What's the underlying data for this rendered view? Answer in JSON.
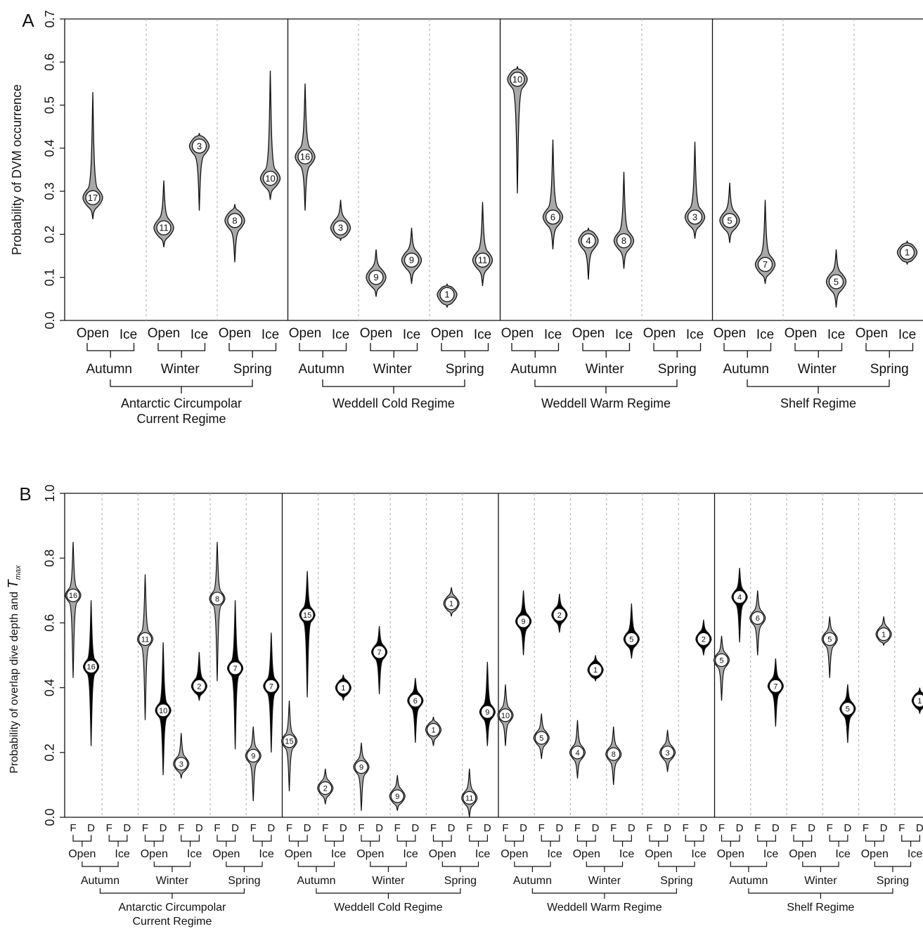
{
  "chart_data": [
    {
      "type": "violin",
      "panel_label": "A",
      "ylabel": "Probability of DVM occurrence",
      "ylim": [
        0,
        0.7
      ],
      "yticks": [
        "0.0",
        "0.1",
        "0.2",
        "0.3",
        "0.4",
        "0.5",
        "0.6",
        "0.7"
      ],
      "regimes": [
        "Antarctic Circumpolar Current Regime",
        "Weddell Cold Regime",
        "Weddell Warm Regime",
        "Shelf Regime"
      ],
      "regime_label_lines": [
        [
          "Antarctic Circumpolar",
          "Current Regime"
        ],
        [
          "Weddell Cold Regime"
        ],
        [
          "Weddell Warm Regime"
        ],
        [
          "Shelf Regime"
        ]
      ],
      "seasons": [
        "Autumn",
        "Winter",
        "Spring"
      ],
      "habitats": [
        "Open",
        "Ice"
      ],
      "violins": [
        {
          "regime": 0,
          "season": 0,
          "habitat": 0,
          "fill": "gray",
          "n": "17",
          "median": 0.285,
          "min": 0.235,
          "max": 0.53
        },
        {
          "regime": 0,
          "season": 1,
          "habitat": 0,
          "fill": "gray",
          "n": "11",
          "median": 0.215,
          "min": 0.17,
          "max": 0.325
        },
        {
          "regime": 0,
          "season": 1,
          "habitat": 1,
          "fill": "gray",
          "n": "3",
          "median": 0.405,
          "min": 0.255,
          "max": 0.435
        },
        {
          "regime": 0,
          "season": 2,
          "habitat": 0,
          "fill": "gray",
          "n": "8",
          "median": 0.232,
          "min": 0.135,
          "max": 0.27
        },
        {
          "regime": 0,
          "season": 2,
          "habitat": 1,
          "fill": "gray",
          "n": "10",
          "median": 0.33,
          "min": 0.28,
          "max": 0.58
        },
        {
          "regime": 1,
          "season": 0,
          "habitat": 0,
          "fill": "gray",
          "n": "16",
          "median": 0.38,
          "min": 0.255,
          "max": 0.55
        },
        {
          "regime": 1,
          "season": 0,
          "habitat": 1,
          "fill": "gray",
          "n": "3",
          "median": 0.215,
          "min": 0.185,
          "max": 0.28
        },
        {
          "regime": 1,
          "season": 1,
          "habitat": 0,
          "fill": "gray",
          "n": "9",
          "median": 0.1,
          "min": 0.055,
          "max": 0.165
        },
        {
          "regime": 1,
          "season": 1,
          "habitat": 1,
          "fill": "gray",
          "n": "9",
          "median": 0.14,
          "min": 0.085,
          "max": 0.215
        },
        {
          "regime": 1,
          "season": 2,
          "habitat": 0,
          "fill": "gray",
          "n": "1",
          "median": 0.06,
          "min": 0.03,
          "max": 0.085
        },
        {
          "regime": 1,
          "season": 2,
          "habitat": 1,
          "fill": "gray",
          "n": "11",
          "median": 0.14,
          "min": 0.08,
          "max": 0.275
        },
        {
          "regime": 2,
          "season": 0,
          "habitat": 0,
          "fill": "gray",
          "n": "10",
          "median": 0.56,
          "min": 0.295,
          "max": 0.59
        },
        {
          "regime": 2,
          "season": 0,
          "habitat": 1,
          "fill": "gray",
          "n": "6",
          "median": 0.24,
          "min": 0.165,
          "max": 0.42
        },
        {
          "regime": 2,
          "season": 1,
          "habitat": 0,
          "fill": "gray",
          "n": "4",
          "median": 0.185,
          "min": 0.095,
          "max": 0.215
        },
        {
          "regime": 2,
          "season": 1,
          "habitat": 1,
          "fill": "gray",
          "n": "8",
          "median": 0.185,
          "min": 0.12,
          "max": 0.345
        },
        {
          "regime": 2,
          "season": 2,
          "habitat": 1,
          "fill": "gray",
          "n": "3",
          "median": 0.24,
          "min": 0.19,
          "max": 0.415
        },
        {
          "regime": 3,
          "season": 0,
          "habitat": 0,
          "fill": "gray",
          "n": "5",
          "median": 0.232,
          "min": 0.18,
          "max": 0.32
        },
        {
          "regime": 3,
          "season": 0,
          "habitat": 1,
          "fill": "gray",
          "n": "7",
          "median": 0.13,
          "min": 0.085,
          "max": 0.28
        },
        {
          "regime": 3,
          "season": 1,
          "habitat": 1,
          "fill": "gray",
          "n": "5",
          "median": 0.09,
          "min": 0.03,
          "max": 0.165
        },
        {
          "regime": 3,
          "season": 2,
          "habitat": 1,
          "fill": "gray",
          "n": "1",
          "median": 0.158,
          "min": 0.13,
          "max": 0.185
        }
      ]
    },
    {
      "type": "violin",
      "panel_label": "B",
      "ylabel": "Probability of overlap dive depth and",
      "ylabel_italic": "T",
      "ylabel_sub": "max",
      "ylim": [
        0,
        1.0
      ],
      "yticks": [
        "0.0",
        "0.2",
        "0.4",
        "0.6",
        "0.8",
        "1.0"
      ],
      "regimes": [
        "Antarctic Circumpolar Current Regime",
        "Weddell Cold Regime",
        "Weddell Warm Regime",
        "Shelf Regime"
      ],
      "regime_label_lines": [
        [
          "Antarctic Circumpolar",
          "Current Regime"
        ],
        [
          "Weddell Cold Regime"
        ],
        [
          "Weddell Warm Regime"
        ],
        [
          "Shelf Regime"
        ]
      ],
      "seasons": [
        "Autumn",
        "Winter",
        "Spring"
      ],
      "habitats": [
        "Open",
        "Ice"
      ],
      "subgroups": [
        "F",
        "D"
      ],
      "violins": [
        {
          "regime": 0,
          "season": 0,
          "habitat": 0,
          "sub": 0,
          "fill": "gray",
          "n": "16",
          "median": 0.685,
          "min": 0.43,
          "max": 0.85
        },
        {
          "regime": 0,
          "season": 0,
          "habitat": 0,
          "sub": 1,
          "fill": "black",
          "n": "16",
          "median": 0.465,
          "min": 0.22,
          "max": 0.67
        },
        {
          "regime": 0,
          "season": 1,
          "habitat": 0,
          "sub": 0,
          "fill": "gray",
          "n": "11",
          "median": 0.55,
          "min": 0.3,
          "max": 0.75
        },
        {
          "regime": 0,
          "season": 1,
          "habitat": 0,
          "sub": 1,
          "fill": "black",
          "n": "10",
          "median": 0.33,
          "min": 0.13,
          "max": 0.54
        },
        {
          "regime": 0,
          "season": 1,
          "habitat": 1,
          "sub": 0,
          "fill": "gray",
          "n": "3",
          "median": 0.165,
          "min": 0.12,
          "max": 0.26
        },
        {
          "regime": 0,
          "season": 1,
          "habitat": 1,
          "sub": 1,
          "fill": "black",
          "n": "2",
          "median": 0.405,
          "min": 0.36,
          "max": 0.51
        },
        {
          "regime": 0,
          "season": 2,
          "habitat": 0,
          "sub": 0,
          "fill": "gray",
          "n": "8",
          "median": 0.675,
          "min": 0.42,
          "max": 0.85
        },
        {
          "regime": 0,
          "season": 2,
          "habitat": 0,
          "sub": 1,
          "fill": "black",
          "n": "7",
          "median": 0.46,
          "min": 0.21,
          "max": 0.67
        },
        {
          "regime": 0,
          "season": 2,
          "habitat": 1,
          "sub": 0,
          "fill": "gray",
          "n": "9",
          "median": 0.19,
          "min": 0.05,
          "max": 0.28
        },
        {
          "regime": 0,
          "season": 2,
          "habitat": 1,
          "sub": 1,
          "fill": "black",
          "n": "7",
          "median": 0.405,
          "min": 0.2,
          "max": 0.57
        },
        {
          "regime": 1,
          "season": 0,
          "habitat": 0,
          "sub": 0,
          "fill": "gray",
          "n": "15",
          "median": 0.235,
          "min": 0.08,
          "max": 0.36
        },
        {
          "regime": 1,
          "season": 0,
          "habitat": 0,
          "sub": 1,
          "fill": "black",
          "n": "15",
          "median": 0.625,
          "min": 0.37,
          "max": 0.76
        },
        {
          "regime": 1,
          "season": 0,
          "habitat": 1,
          "sub": 0,
          "fill": "gray",
          "n": "2",
          "median": 0.09,
          "min": 0.04,
          "max": 0.15
        },
        {
          "regime": 1,
          "season": 0,
          "habitat": 1,
          "sub": 1,
          "fill": "black",
          "n": "1",
          "median": 0.4,
          "min": 0.36,
          "max": 0.44
        },
        {
          "regime": 1,
          "season": 1,
          "habitat": 0,
          "sub": 0,
          "fill": "gray",
          "n": "9",
          "median": 0.155,
          "min": 0.02,
          "max": 0.23
        },
        {
          "regime": 1,
          "season": 1,
          "habitat": 0,
          "sub": 1,
          "fill": "black",
          "n": "7",
          "median": 0.51,
          "min": 0.38,
          "max": 0.59
        },
        {
          "regime": 1,
          "season": 1,
          "habitat": 1,
          "sub": 0,
          "fill": "gray",
          "n": "9",
          "median": 0.065,
          "min": 0.02,
          "max": 0.13
        },
        {
          "regime": 1,
          "season": 1,
          "habitat": 1,
          "sub": 1,
          "fill": "black",
          "n": "6",
          "median": 0.36,
          "min": 0.23,
          "max": 0.43
        },
        {
          "regime": 1,
          "season": 2,
          "habitat": 0,
          "sub": 0,
          "fill": "gray",
          "n": "1",
          "median": 0.27,
          "min": 0.22,
          "max": 0.31
        },
        {
          "regime": 1,
          "season": 2,
          "habitat": 0,
          "sub": 1,
          "fill": "gray",
          "n": "1",
          "median": 0.66,
          "min": 0.62,
          "max": 0.71
        },
        {
          "regime": 1,
          "season": 2,
          "habitat": 1,
          "sub": 0,
          "fill": "gray",
          "n": "11",
          "median": 0.06,
          "min": 0.0,
          "max": 0.15
        },
        {
          "regime": 1,
          "season": 2,
          "habitat": 1,
          "sub": 1,
          "fill": "black",
          "n": "9",
          "median": 0.325,
          "min": 0.22,
          "max": 0.48
        },
        {
          "regime": 2,
          "season": 0,
          "habitat": 0,
          "sub": 0,
          "fill": "gray",
          "n": "10",
          "median": 0.315,
          "min": 0.22,
          "max": 0.41
        },
        {
          "regime": 2,
          "season": 0,
          "habitat": 0,
          "sub": 1,
          "fill": "black",
          "n": "9",
          "median": 0.605,
          "min": 0.5,
          "max": 0.7
        },
        {
          "regime": 2,
          "season": 0,
          "habitat": 1,
          "sub": 0,
          "fill": "gray",
          "n": "5",
          "median": 0.245,
          "min": 0.18,
          "max": 0.32
        },
        {
          "regime": 2,
          "season": 0,
          "habitat": 1,
          "sub": 1,
          "fill": "black",
          "n": "2",
          "median": 0.625,
          "min": 0.57,
          "max": 0.69
        },
        {
          "regime": 2,
          "season": 1,
          "habitat": 0,
          "sub": 0,
          "fill": "gray",
          "n": "4",
          "median": 0.2,
          "min": 0.12,
          "max": 0.3
        },
        {
          "regime": 2,
          "season": 1,
          "habitat": 0,
          "sub": 1,
          "fill": "black",
          "n": "1",
          "median": 0.455,
          "min": 0.42,
          "max": 0.5
        },
        {
          "regime": 2,
          "season": 1,
          "habitat": 1,
          "sub": 0,
          "fill": "gray",
          "n": "8",
          "median": 0.195,
          "min": 0.1,
          "max": 0.28
        },
        {
          "regime": 2,
          "season": 1,
          "habitat": 1,
          "sub": 1,
          "fill": "black",
          "n": "5",
          "median": 0.55,
          "min": 0.49,
          "max": 0.66
        },
        {
          "regime": 2,
          "season": 2,
          "habitat": 0,
          "sub": 1,
          "fill": "gray",
          "n": "3",
          "median": 0.2,
          "min": 0.14,
          "max": 0.27
        },
        {
          "regime": 2,
          "season": 2,
          "habitat": 1,
          "sub": 1,
          "fill": "black",
          "n": "2",
          "median": 0.55,
          "min": 0.5,
          "max": 0.61
        },
        {
          "regime": 3,
          "season": 0,
          "habitat": 0,
          "sub": 0,
          "fill": "gray",
          "n": "5",
          "median": 0.485,
          "min": 0.36,
          "max": 0.56
        },
        {
          "regime": 3,
          "season": 0,
          "habitat": 0,
          "sub": 1,
          "fill": "black",
          "n": "4",
          "median": 0.68,
          "min": 0.54,
          "max": 0.77
        },
        {
          "regime": 3,
          "season": 0,
          "habitat": 1,
          "sub": 0,
          "fill": "gray",
          "n": "6",
          "median": 0.615,
          "min": 0.5,
          "max": 0.7
        },
        {
          "regime": 3,
          "season": 0,
          "habitat": 1,
          "sub": 1,
          "fill": "black",
          "n": "7",
          "median": 0.405,
          "min": 0.28,
          "max": 0.49
        },
        {
          "regime": 3,
          "season": 1,
          "habitat": 1,
          "sub": 0,
          "fill": "gray",
          "n": "5",
          "median": 0.55,
          "min": 0.43,
          "max": 0.62
        },
        {
          "regime": 3,
          "season": 1,
          "habitat": 1,
          "sub": 1,
          "fill": "black",
          "n": "5",
          "median": 0.335,
          "min": 0.23,
          "max": 0.41
        },
        {
          "regime": 3,
          "season": 2,
          "habitat": 0,
          "sub": 1,
          "fill": "gray",
          "n": "1",
          "median": 0.565,
          "min": 0.53,
          "max": 0.62
        },
        {
          "regime": 3,
          "season": 2,
          "habitat": 1,
          "sub": 1,
          "fill": "black",
          "n": "1",
          "median": 0.36,
          "min": 0.32,
          "max": 0.4
        }
      ]
    }
  ],
  "colors": {
    "gray_fill": "#a8a8a8",
    "black_fill": "#000000",
    "dotted_divider": "#b5b5b5",
    "axis": "#111111"
  }
}
